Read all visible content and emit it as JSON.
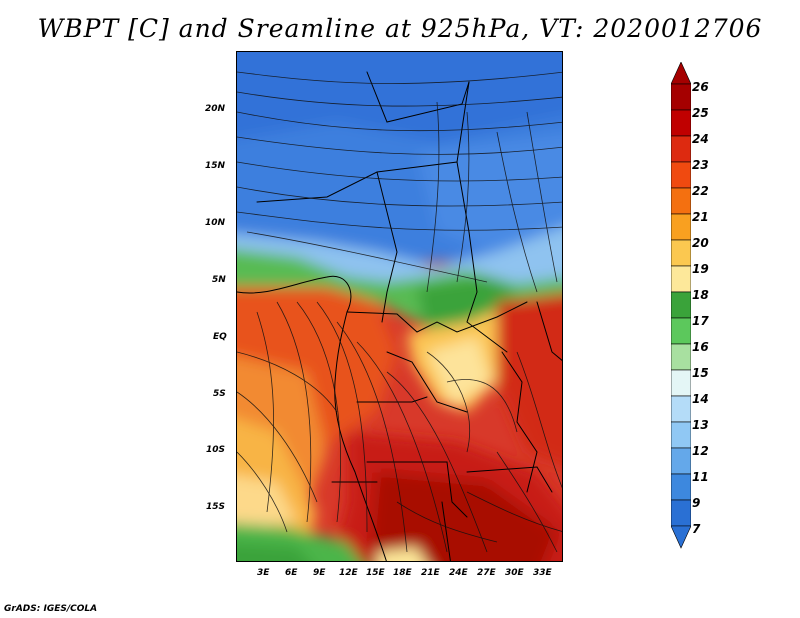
{
  "title": "WBPT [C] and Sreamline at 925hPa, VT: 2020012706",
  "credit": "GrADS: IGES/COLA",
  "map": {
    "lat_labels": [
      "20N",
      "15N",
      "10N",
      "5N",
      "EQ",
      "5S",
      "10S",
      "15S"
    ],
    "lon_labels": [
      "3E",
      "6E",
      "9E",
      "12E",
      "15E",
      "18E",
      "21E",
      "24E",
      "27E",
      "30E",
      "33E"
    ]
  },
  "colorbar": {
    "labels": [
      "26",
      "25",
      "24",
      "23",
      "22",
      "21",
      "20",
      "19",
      "18",
      "17",
      "16",
      "15",
      "14",
      "13",
      "12",
      "11",
      "9",
      "7"
    ],
    "colors": [
      "#a50000",
      "#c00000",
      "#dd2a10",
      "#f04a10",
      "#f47010",
      "#f9a020",
      "#fbc850",
      "#fde89a",
      "#3aa33a",
      "#5cc85c",
      "#a8e0a0",
      "#e4f6f6",
      "#b4dcf8",
      "#90c8f4",
      "#64a8ea",
      "#3d88de",
      "#2a70d4"
    ]
  }
}
